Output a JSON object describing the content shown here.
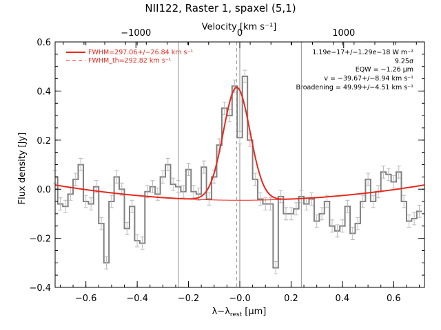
{
  "chart_data": {
    "type": "line",
    "title": "NII122, Raster 1, spaxel (5,1)",
    "xlabel": "λ−λrest [μm]",
    "xlabel_main": "λ−λ",
    "xlabel_sub": "rest",
    "xlabel_unit": " [μm]",
    "ylabel": "Flux density [Jy]",
    "top_axis_label": "Velocity [km s⁻¹]",
    "xlim": [
      -0.72,
      0.72
    ],
    "ylim": [
      -0.4,
      0.6
    ],
    "x_ticks": [
      -0.6,
      -0.4,
      -0.2,
      0.0,
      0.2,
      0.4,
      0.6
    ],
    "x_tick_labels": [
      "−0.6",
      "−0.4",
      "−0.2",
      "−0.0",
      "0.2",
      "0.4",
      "0.6"
    ],
    "y_ticks": [
      -0.4,
      -0.2,
      0.0,
      0.2,
      0.4,
      0.6
    ],
    "y_tick_labels": [
      "−0.4",
      "−0.2",
      "0.0",
      "0.2",
      "0.4",
      "0.6"
    ],
    "top_ticks": [
      -1000,
      0,
      1000
    ],
    "top_tick_labels": [
      "−1000",
      "0",
      "1000"
    ],
    "vertical_lines": [
      -0.24,
      0.0,
      0.24
    ],
    "center_line": -0.012,
    "legend": [
      {
        "label": "FWHM=297.06+/−26.84 km s⁻¹",
        "style": "solid",
        "color": "#e8271b"
      },
      {
        "label": "FWHM_th=292.82 km s⁻¹",
        "style": "dashed",
        "color": "#e8271b"
      }
    ],
    "annotations": [
      "1.19e−17+/−1.29e−18 W m⁻²",
      "9.25σ",
      "EQW = −1.26 μm",
      "v = −39.67+/−8.94 km s⁻¹",
      "Broadening = 49.99+/−4.51 km s⁻¹"
    ],
    "series": [
      {
        "name": "Observed spectrum",
        "color": "#808080",
        "style": "step",
        "x": [
          -0.72,
          -0.7,
          -0.68,
          -0.66,
          -0.64,
          -0.62,
          -0.6,
          -0.58,
          -0.56,
          -0.54,
          -0.52,
          -0.5,
          -0.48,
          -0.46,
          -0.44,
          -0.42,
          -0.4,
          -0.38,
          -0.36,
          -0.34,
          -0.32,
          -0.3,
          -0.28,
          -0.26,
          -0.24,
          -0.22,
          -0.2,
          -0.18,
          -0.16,
          -0.14,
          -0.12,
          -0.1,
          -0.08,
          -0.06,
          -0.04,
          -0.02,
          0.0,
          0.02,
          0.04,
          0.06,
          0.08,
          0.1,
          0.12,
          0.14,
          0.16,
          0.18,
          0.2,
          0.22,
          0.24,
          0.26,
          0.28,
          0.3,
          0.32,
          0.34,
          0.36,
          0.38,
          0.4,
          0.42,
          0.44,
          0.46,
          0.48,
          0.5,
          0.52,
          0.54,
          0.56,
          0.58,
          0.6,
          0.62,
          0.64,
          0.66,
          0.68,
          0.7
        ],
        "y": [
          0.05,
          -0.06,
          -0.07,
          -0.02,
          0.04,
          0.1,
          -0.05,
          -0.06,
          0.01,
          -0.14,
          -0.3,
          -0.05,
          0.05,
          0.0,
          -0.16,
          -0.07,
          -0.21,
          -0.22,
          -0.01,
          0.01,
          -0.02,
          0.05,
          0.1,
          0.02,
          0.01,
          -0.01,
          0.08,
          -0.01,
          -0.02,
          0.09,
          -0.04,
          0.05,
          0.18,
          0.33,
          0.3,
          0.42,
          0.21,
          0.46,
          0.2,
          0.04,
          -0.04,
          -0.06,
          -0.06,
          -0.32,
          -0.03,
          -0.1,
          -0.1,
          -0.08,
          -0.03,
          -0.06,
          -0.04,
          -0.13,
          -0.1,
          -0.05,
          -0.15,
          -0.17,
          -0.15,
          -0.07,
          -0.18,
          -0.14,
          -0.05,
          0.04,
          -0.05,
          -0.01,
          0.07,
          0.06,
          0.03,
          0.07,
          -0.05,
          -0.13,
          -0.12,
          -0.09
        ],
        "yerr": 0.025
      },
      {
        "name": "Gaussian fit",
        "color": "#e8271b",
        "style": "line",
        "model": {
          "amplitude": 0.46,
          "center": -0.012,
          "sigma": 0.052
        }
      },
      {
        "name": "Baseline",
        "color": "#e8271b",
        "style": "line",
        "model": {
          "quadratic": [
            -0.045,
            0.0,
            0.12
          ]
        }
      }
    ],
    "line_color": "#e8271b",
    "grid": false
  }
}
